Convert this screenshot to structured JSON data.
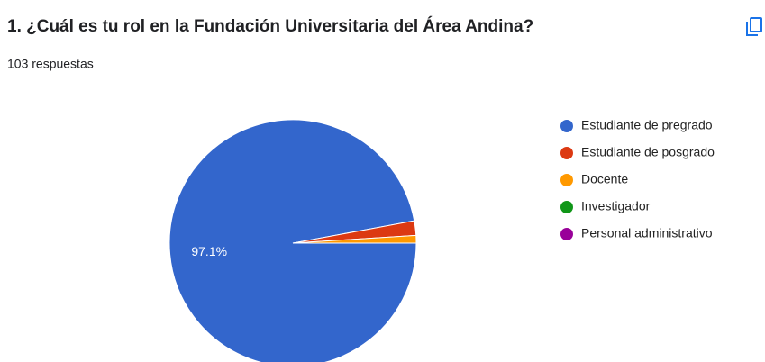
{
  "chart_data": {
    "type": "pie",
    "title": "1. ¿Cuál es tu rol en la Fundación Universitaria del Área Andina?",
    "subtitle": "103 respuestas",
    "categories": [
      "Estudiante de pregrado",
      "Estudiante de posgrado",
      "Docente",
      "Investigador",
      "Personal administrativo"
    ],
    "values": [
      97.1,
      1.9,
      1,
      0,
      0
    ],
    "value_labels": [
      "97.1%",
      null,
      null,
      null,
      null
    ],
    "colors": [
      "#3366cc",
      "#dc3912",
      "#ff9900",
      "#109618",
      "#990099"
    ],
    "legend": "right"
  }
}
